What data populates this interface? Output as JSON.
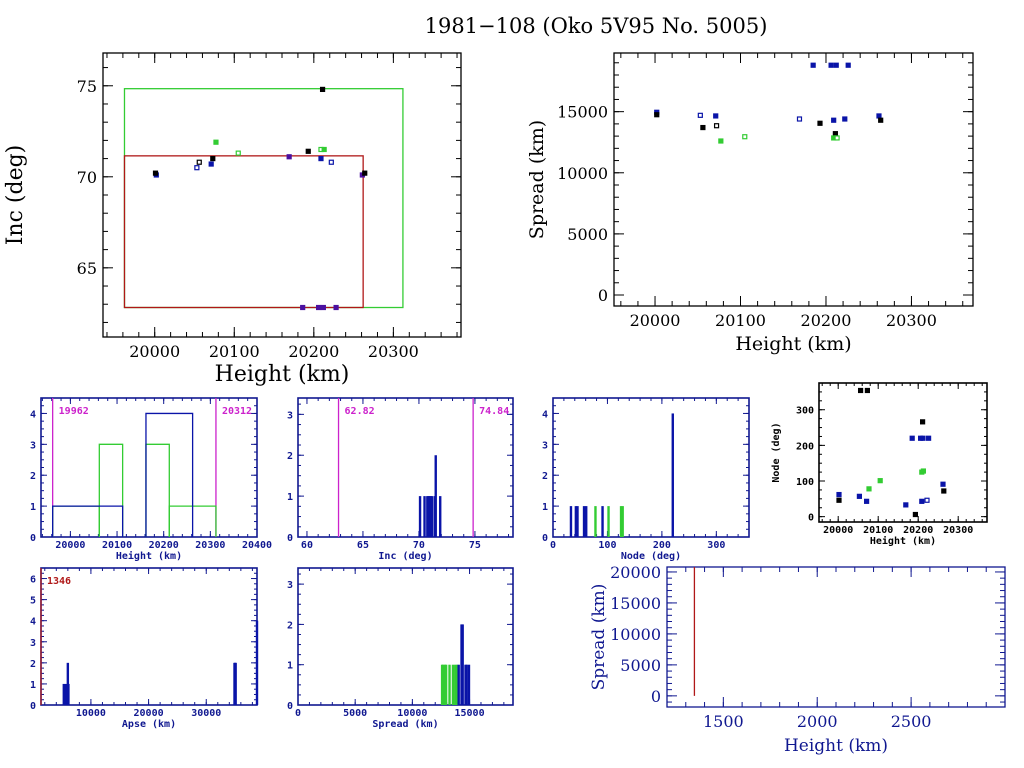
{
  "title": "1981−108 (Oko 5V95 No. 5005)",
  "colors": {
    "black": "#000000",
    "blue": "#0a14a8",
    "green": "#33cc33",
    "red": "#b01818",
    "magenta": "#cc22cc",
    "axis_blue": "#101890",
    "purple": "#4a10a0"
  },
  "chart_data": [
    {
      "id": "inc-vs-height",
      "type": "scatter",
      "title": "",
      "xlabel": "Height (km)",
      "ylabel": "Inc (deg)",
      "xlim": [
        19935,
        20385
      ],
      "ylim": [
        61.2,
        76.8
      ],
      "xticks": [
        20000,
        20100,
        20200,
        20300
      ],
      "yticks": [
        65,
        70,
        75
      ],
      "boxes": [
        {
          "name": "green-bounds",
          "color": "green",
          "x": [
            19962,
            20312
          ],
          "y": [
            62.82,
            74.84
          ]
        },
        {
          "name": "red-bounds",
          "color": "red",
          "x": [
            19962,
            20262
          ],
          "y": [
            62.82,
            71.15
          ]
        }
      ],
      "points": [
        {
          "x": 20002,
          "y": 70.1,
          "c": "blue",
          "f": true
        },
        {
          "x": 20001,
          "y": 70.2,
          "c": "black",
          "f": true
        },
        {
          "x": 20053,
          "y": 70.5,
          "c": "blue",
          "f": false
        },
        {
          "x": 20056,
          "y": 70.8,
          "c": "black",
          "f": false
        },
        {
          "x": 20071,
          "y": 70.7,
          "c": "blue",
          "f": true
        },
        {
          "x": 20073,
          "y": 71.0,
          "c": "black",
          "f": true
        },
        {
          "x": 20077,
          "y": 71.9,
          "c": "green",
          "f": true
        },
        {
          "x": 20105,
          "y": 71.3,
          "c": "green",
          "f": false
        },
        {
          "x": 20169,
          "y": 71.1,
          "c": "purple",
          "f": true
        },
        {
          "x": 20193,
          "y": 71.4,
          "c": "black",
          "f": true
        },
        {
          "x": 20209,
          "y": 71.5,
          "c": "green",
          "f": false
        },
        {
          "x": 20213,
          "y": 71.5,
          "c": "green",
          "f": true
        },
        {
          "x": 20209,
          "y": 71.0,
          "c": "blue",
          "f": true
        },
        {
          "x": 20222,
          "y": 70.8,
          "c": "blue",
          "f": false
        },
        {
          "x": 20211,
          "y": 74.8,
          "c": "black",
          "f": true
        },
        {
          "x": 20261,
          "y": 70.1,
          "c": "purple",
          "f": true
        },
        {
          "x": 20264,
          "y": 70.2,
          "c": "black",
          "f": true
        },
        {
          "x": 20186,
          "y": 62.82,
          "c": "purple",
          "f": true
        },
        {
          "x": 20206,
          "y": 62.82,
          "c": "purple",
          "f": true
        },
        {
          "x": 20212,
          "y": 62.82,
          "c": "purple",
          "f": true
        },
        {
          "x": 20228,
          "y": 62.82,
          "c": "purple",
          "f": true
        }
      ]
    },
    {
      "id": "spread-vs-height",
      "type": "scatter",
      "xlabel": "Height (km)",
      "ylabel": "Spread (km)",
      "xlim": [
        19952,
        20372
      ],
      "ylim": [
        -900,
        19800
      ],
      "xticks": [
        20000,
        20100,
        20200,
        20300
      ],
      "yticks": [
        0,
        5000,
        10000,
        15000
      ],
      "points": [
        {
          "x": 20002,
          "y": 14950,
          "c": "blue",
          "f": true
        },
        {
          "x": 20002,
          "y": 14750,
          "c": "black",
          "f": true
        },
        {
          "x": 20053,
          "y": 14700,
          "c": "blue",
          "f": false
        },
        {
          "x": 20056,
          "y": 13700,
          "c": "black",
          "f": true
        },
        {
          "x": 20071,
          "y": 14650,
          "c": "blue",
          "f": true
        },
        {
          "x": 20072,
          "y": 13850,
          "c": "black",
          "f": false
        },
        {
          "x": 20077,
          "y": 12600,
          "c": "green",
          "f": true
        },
        {
          "x": 20105,
          "y": 12950,
          "c": "green",
          "f": false
        },
        {
          "x": 20169,
          "y": 14400,
          "c": "blue",
          "f": false
        },
        {
          "x": 20185,
          "y": 18800,
          "c": "blue",
          "f": true
        },
        {
          "x": 20193,
          "y": 14050,
          "c": "black",
          "f": true
        },
        {
          "x": 20206,
          "y": 18800,
          "c": "blue",
          "f": true
        },
        {
          "x": 20212,
          "y": 18800,
          "c": "blue",
          "f": true
        },
        {
          "x": 20226,
          "y": 18800,
          "c": "blue",
          "f": true
        },
        {
          "x": 20209,
          "y": 14300,
          "c": "blue",
          "f": true
        },
        {
          "x": 20211,
          "y": 13200,
          "c": "black",
          "f": true
        },
        {
          "x": 20209,
          "y": 12850,
          "c": "green",
          "f": true
        },
        {
          "x": 20213,
          "y": 12850,
          "c": "green",
          "f": false
        },
        {
          "x": 20222,
          "y": 14400,
          "c": "blue",
          "f": true
        },
        {
          "x": 20262,
          "y": 14650,
          "c": "blue",
          "f": true
        },
        {
          "x": 20264,
          "y": 14300,
          "c": "black",
          "f": true
        }
      ]
    },
    {
      "id": "height-histogram",
      "type": "bar",
      "xlabel": "Height (km)",
      "ylabel": "",
      "xlim": [
        19937,
        20400
      ],
      "ylim": [
        0,
        4.5
      ],
      "xticks": [
        20000,
        20100,
        20200,
        20300,
        20400
      ],
      "yticks": [
        0,
        1,
        2,
        3,
        4
      ],
      "markers": [
        {
          "value": 19962,
          "label": "19962",
          "color": "magenta"
        },
        {
          "value": 20312,
          "label": "20312",
          "color": "magenta"
        }
      ],
      "series": [
        {
          "name": "green-steps",
          "color": "green",
          "steps": [
            [
              19962,
              20062,
              1
            ],
            [
              20062,
              20112,
              3
            ],
            [
              20162,
              20212,
              3
            ],
            [
              20212,
              20312,
              1
            ]
          ]
        },
        {
          "name": "blue-steps",
          "color": "blue",
          "steps": [
            [
              19962,
              20112,
              1
            ],
            [
              20162,
              20262,
              4
            ]
          ]
        }
      ]
    },
    {
      "id": "inc-histogram",
      "type": "bar",
      "xlabel": "Inc (deg)",
      "xlim": [
        59.2,
        78.4
      ],
      "ylim": [
        0,
        3.4
      ],
      "xticks": [
        60,
        65,
        70,
        75
      ],
      "yticks": [
        0,
        1,
        2,
        3
      ],
      "markers": [
        {
          "value": 62.82,
          "label": "62.82",
          "color": "magenta"
        },
        {
          "value": 74.84,
          "label": "74.84",
          "color": "magenta"
        }
      ],
      "bars": [
        {
          "x": 70.1,
          "h": 1,
          "c": "blue"
        },
        {
          "x": 70.5,
          "h": 1,
          "c": "blue"
        },
        {
          "x": 70.75,
          "h": 1,
          "c": "blue"
        },
        {
          "x": 70.85,
          "h": 1,
          "c": "blue"
        },
        {
          "x": 70.95,
          "h": 1,
          "c": "blue"
        },
        {
          "x": 71.05,
          "h": 1,
          "c": "blue"
        },
        {
          "x": 71.15,
          "h": 1,
          "c": "blue"
        },
        {
          "x": 71.4,
          "h": 1,
          "c": "blue"
        },
        {
          "x": 71.5,
          "h": 2,
          "c": "blue"
        },
        {
          "x": 71.9,
          "h": 1,
          "c": "blue"
        }
      ]
    },
    {
      "id": "node-histogram",
      "type": "bar",
      "xlabel": "Node (deg)",
      "xlim": [
        0,
        360
      ],
      "ylim": [
        0,
        4.5
      ],
      "xticks": [
        0,
        100,
        200,
        300
      ],
      "yticks": [
        0,
        1,
        2,
        3,
        4
      ],
      "bars": [
        {
          "x": 33,
          "h": 1,
          "c": "blue"
        },
        {
          "x": 42,
          "h": 1,
          "c": "blue"
        },
        {
          "x": 45,
          "h": 1,
          "c": "blue"
        },
        {
          "x": 57,
          "h": 1,
          "c": "blue"
        },
        {
          "x": 61,
          "h": 1,
          "c": "blue"
        },
        {
          "x": 78,
          "h": 1,
          "c": "green"
        },
        {
          "x": 91,
          "h": 1,
          "c": "blue"
        },
        {
          "x": 102,
          "h": 1,
          "c": "green"
        },
        {
          "x": 125,
          "h": 1,
          "c": "green"
        },
        {
          "x": 128,
          "h": 1,
          "c": "green"
        },
        {
          "x": 220,
          "h": 4,
          "c": "blue"
        }
      ]
    },
    {
      "id": "node-vs-height",
      "type": "scatter",
      "xlabel": "Height (km)",
      "ylabel": "Node (deg)",
      "xlim": [
        19952,
        20372
      ],
      "ylim": [
        -15,
        375
      ],
      "xticks": [
        20000,
        20100,
        20200,
        20300
      ],
      "yticks": [
        0,
        100,
        200,
        300
      ],
      "points": [
        {
          "x": 20002,
          "y": 62,
          "c": "blue",
          "f": true
        },
        {
          "x": 20002,
          "y": 46,
          "c": "black",
          "f": true
        },
        {
          "x": 20053,
          "y": 57,
          "c": "blue",
          "f": true
        },
        {
          "x": 20056,
          "y": 354,
          "c": "black",
          "f": true
        },
        {
          "x": 20071,
          "y": 43,
          "c": "blue",
          "f": true
        },
        {
          "x": 20073,
          "y": 354,
          "c": "black",
          "f": true
        },
        {
          "x": 20077,
          "y": 78,
          "c": "green",
          "f": true
        },
        {
          "x": 20105,
          "y": 101,
          "c": "green",
          "f": true
        },
        {
          "x": 20169,
          "y": 33,
          "c": "blue",
          "f": true
        },
        {
          "x": 20185,
          "y": 220,
          "c": "blue",
          "f": true
        },
        {
          "x": 20193,
          "y": 6,
          "c": "black",
          "f": true
        },
        {
          "x": 20206,
          "y": 220,
          "c": "blue",
          "f": true
        },
        {
          "x": 20212,
          "y": 220,
          "c": "blue",
          "f": true
        },
        {
          "x": 20226,
          "y": 220,
          "c": "blue",
          "f": true
        },
        {
          "x": 20209,
          "y": 125,
          "c": "green",
          "f": true
        },
        {
          "x": 20213,
          "y": 128,
          "c": "green",
          "f": true
        },
        {
          "x": 20209,
          "y": 43,
          "c": "blue",
          "f": true
        },
        {
          "x": 20211,
          "y": 266,
          "c": "black",
          "f": true
        },
        {
          "x": 20222,
          "y": 46,
          "c": "blue",
          "f": false
        },
        {
          "x": 20262,
          "y": 91,
          "c": "blue",
          "f": true
        },
        {
          "x": 20264,
          "y": 72,
          "c": "black",
          "f": true
        }
      ]
    },
    {
      "id": "apse-histogram",
      "type": "bar",
      "xlabel": "Apse (km)",
      "xlim": [
        1346,
        38800
      ],
      "ylim": [
        0,
        6.5
      ],
      "xticks": [
        10000,
        20000,
        30000
      ],
      "yticks": [
        0,
        1,
        2,
        3,
        4,
        5,
        6
      ],
      "markers": [
        {
          "value": 1346,
          "label": "1346",
          "color": "red"
        }
      ],
      "bars": [
        {
          "x": 5300,
          "h": 1,
          "c": "blue"
        },
        {
          "x": 5700,
          "h": 1,
          "c": "blue"
        },
        {
          "x": 6000,
          "h": 2,
          "c": "blue"
        },
        {
          "x": 6100,
          "h": 1,
          "c": "blue"
        },
        {
          "x": 34900,
          "h": 2,
          "c": "blue"
        },
        {
          "x": 35000,
          "h": 2,
          "c": "blue"
        },
        {
          "x": 35100,
          "h": 2,
          "c": "blue"
        },
        {
          "x": 38800,
          "h": 4,
          "c": "blue"
        }
      ]
    },
    {
      "id": "spread-histogram",
      "type": "bar",
      "xlabel": "Spread (km)",
      "xlim": [
        0,
        18800
      ],
      "ylim": [
        0,
        3.4
      ],
      "xticks": [
        0,
        5000,
        10000,
        15000
      ],
      "yticks": [
        0,
        1,
        2,
        3
      ],
      "bars": [
        {
          "x": 12600,
          "h": 1,
          "c": "green"
        },
        {
          "x": 12700,
          "h": 1,
          "c": "green"
        },
        {
          "x": 12850,
          "h": 1,
          "c": "green"
        },
        {
          "x": 12950,
          "h": 1,
          "c": "green"
        },
        {
          "x": 13250,
          "h": 1,
          "c": "green"
        },
        {
          "x": 13550,
          "h": 1,
          "c": "green"
        },
        {
          "x": 13750,
          "h": 1,
          "c": "green"
        },
        {
          "x": 13900,
          "h": 1,
          "c": "green"
        },
        {
          "x": 14050,
          "h": 1,
          "c": "blue"
        },
        {
          "x": 14300,
          "h": 2,
          "c": "blue"
        },
        {
          "x": 14400,
          "h": 2,
          "c": "blue"
        },
        {
          "x": 14650,
          "h": 1,
          "c": "blue"
        },
        {
          "x": 14750,
          "h": 1,
          "c": "blue"
        },
        {
          "x": 14950,
          "h": 1,
          "c": "blue"
        }
      ]
    },
    {
      "id": "spread-vs-height-low",
      "type": "line",
      "xlabel": "Height (km)",
      "ylabel": "Spread (km)",
      "xlim": [
        1200,
        3000
      ],
      "ylim": [
        -1800,
        20800
      ],
      "xticks": [
        1500,
        2000,
        2500
      ],
      "yticks": [
        0,
        5000,
        10000,
        15000,
        20000
      ],
      "lines": [
        {
          "name": "red-vertical",
          "color": "red",
          "x": [
            1346,
            1346
          ],
          "y": [
            0,
            20800
          ]
        }
      ]
    }
  ]
}
